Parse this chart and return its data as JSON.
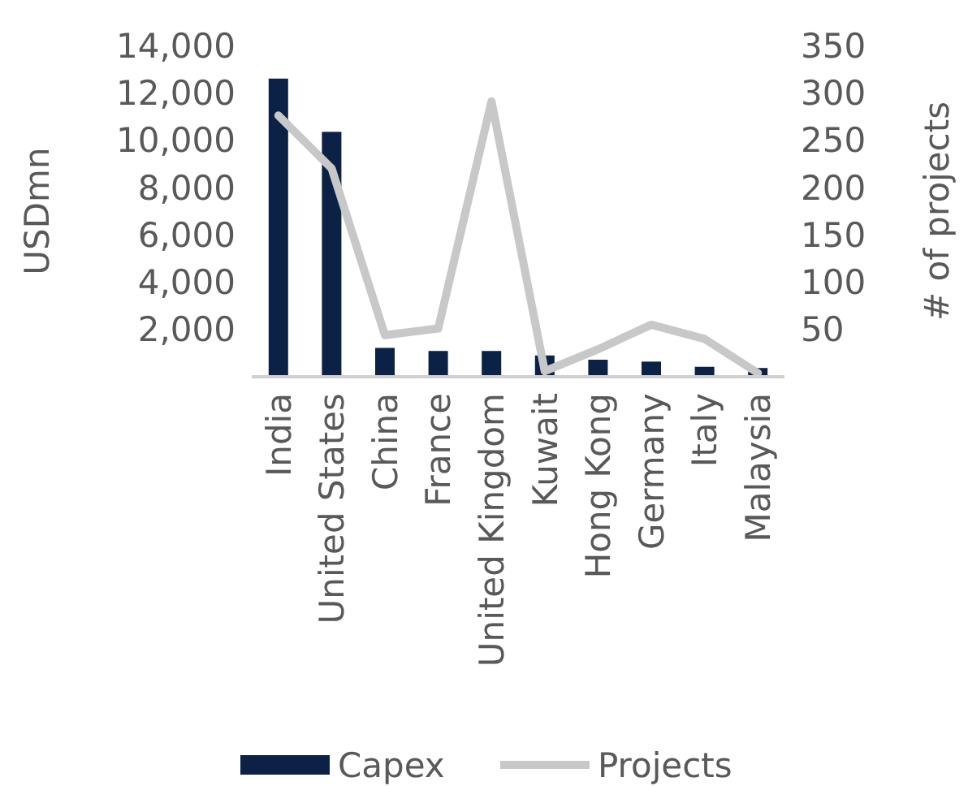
{
  "chart_data": {
    "type": "bar",
    "categories": [
      "India",
      "United States",
      "China",
      "France",
      "United Kingdom",
      "Kuwait",
      "Hong Kong",
      "Germany",
      "Italy",
      "Malaysia"
    ],
    "series": [
      {
        "name": "Capex",
        "color": "#0b2145",
        "values": [
          12600,
          10350,
          1220,
          1090,
          1090,
          900,
          720,
          640,
          420,
          370
        ]
      },
      {
        "name": "Projects",
        "type": "line",
        "axis": "y2",
        "color": "#c8c8c8",
        "values": [
          276,
          220,
          44,
          51,
          291,
          6,
          29,
          55,
          40,
          4
        ]
      }
    ],
    "ylabel": "USDmn",
    "y2label": "# of projects",
    "ylim": [
      0,
      14000
    ],
    "yticks": [
      {
        "value": 2000,
        "label": "2,000"
      },
      {
        "value": 4000,
        "label": "4,000"
      },
      {
        "value": 6000,
        "label": "6,000"
      },
      {
        "value": 8000,
        "label": "8,000"
      },
      {
        "value": 10000,
        "label": "10,000"
      },
      {
        "value": 12000,
        "label": "12,000"
      },
      {
        "value": 14000,
        "label": "14,000"
      }
    ],
    "y2lim": [
      0,
      350
    ],
    "y2ticks": [
      50,
      100,
      150,
      200,
      250,
      300,
      350
    ],
    "legend": "bottom",
    "grid": false
  }
}
